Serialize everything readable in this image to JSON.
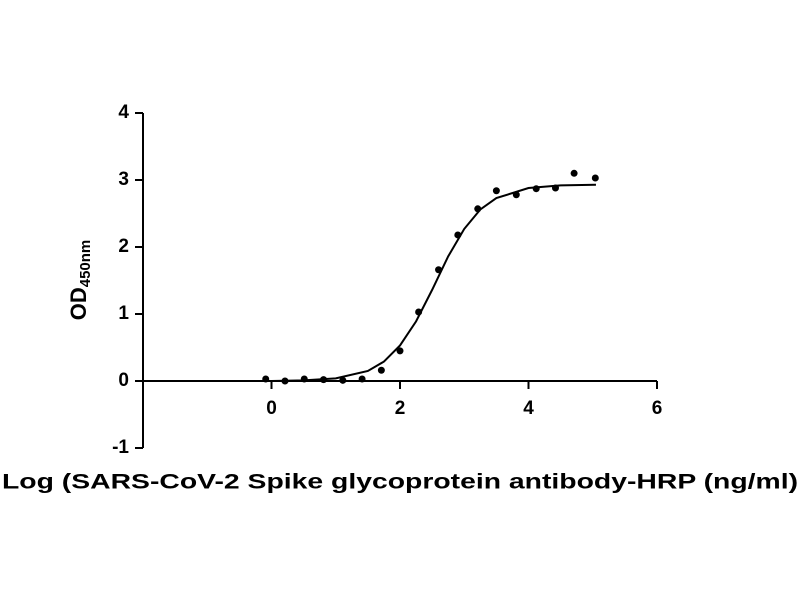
{
  "chart_data": {
    "type": "scatter",
    "xlabel": "Log (SARS-CoV-2 Spike glycoprotein antibody-HRP (ng/ml)",
    "ylabel": "OD",
    "ylabel_subscript": "450nm",
    "x": [
      -0.09,
      0.21,
      0.51,
      0.81,
      1.11,
      1.41,
      1.71,
      2.0,
      2.29,
      2.6,
      2.9,
      3.21,
      3.5,
      3.81,
      4.12,
      4.42,
      4.71,
      5.04
    ],
    "values": [
      0.03,
      0.0,
      0.03,
      0.02,
      0.01,
      0.03,
      0.16,
      0.45,
      1.03,
      1.66,
      2.18,
      2.57,
      2.84,
      2.78,
      2.87,
      2.88,
      3.1,
      3.03
    ],
    "curve_x": [
      -0.1,
      0,
      0.5,
      1,
      1.5,
      1.75,
      2,
      2.25,
      2.5,
      2.75,
      3,
      3.25,
      3.5,
      4,
      4.5,
      5.05
    ],
    "curve_values": [
      0,
      0,
      0.01,
      0.04,
      0.15,
      0.29,
      0.53,
      0.89,
      1.36,
      1.86,
      2.27,
      2.56,
      2.73,
      2.88,
      2.92,
      2.93
    ],
    "color": "#000000",
    "xlim": [
      -2,
      6
    ],
    "xticks": [
      0,
      2,
      4,
      6
    ],
    "ylim": [
      -1,
      4
    ],
    "yticks": [
      -1,
      0,
      1,
      2,
      3,
      4
    ]
  }
}
